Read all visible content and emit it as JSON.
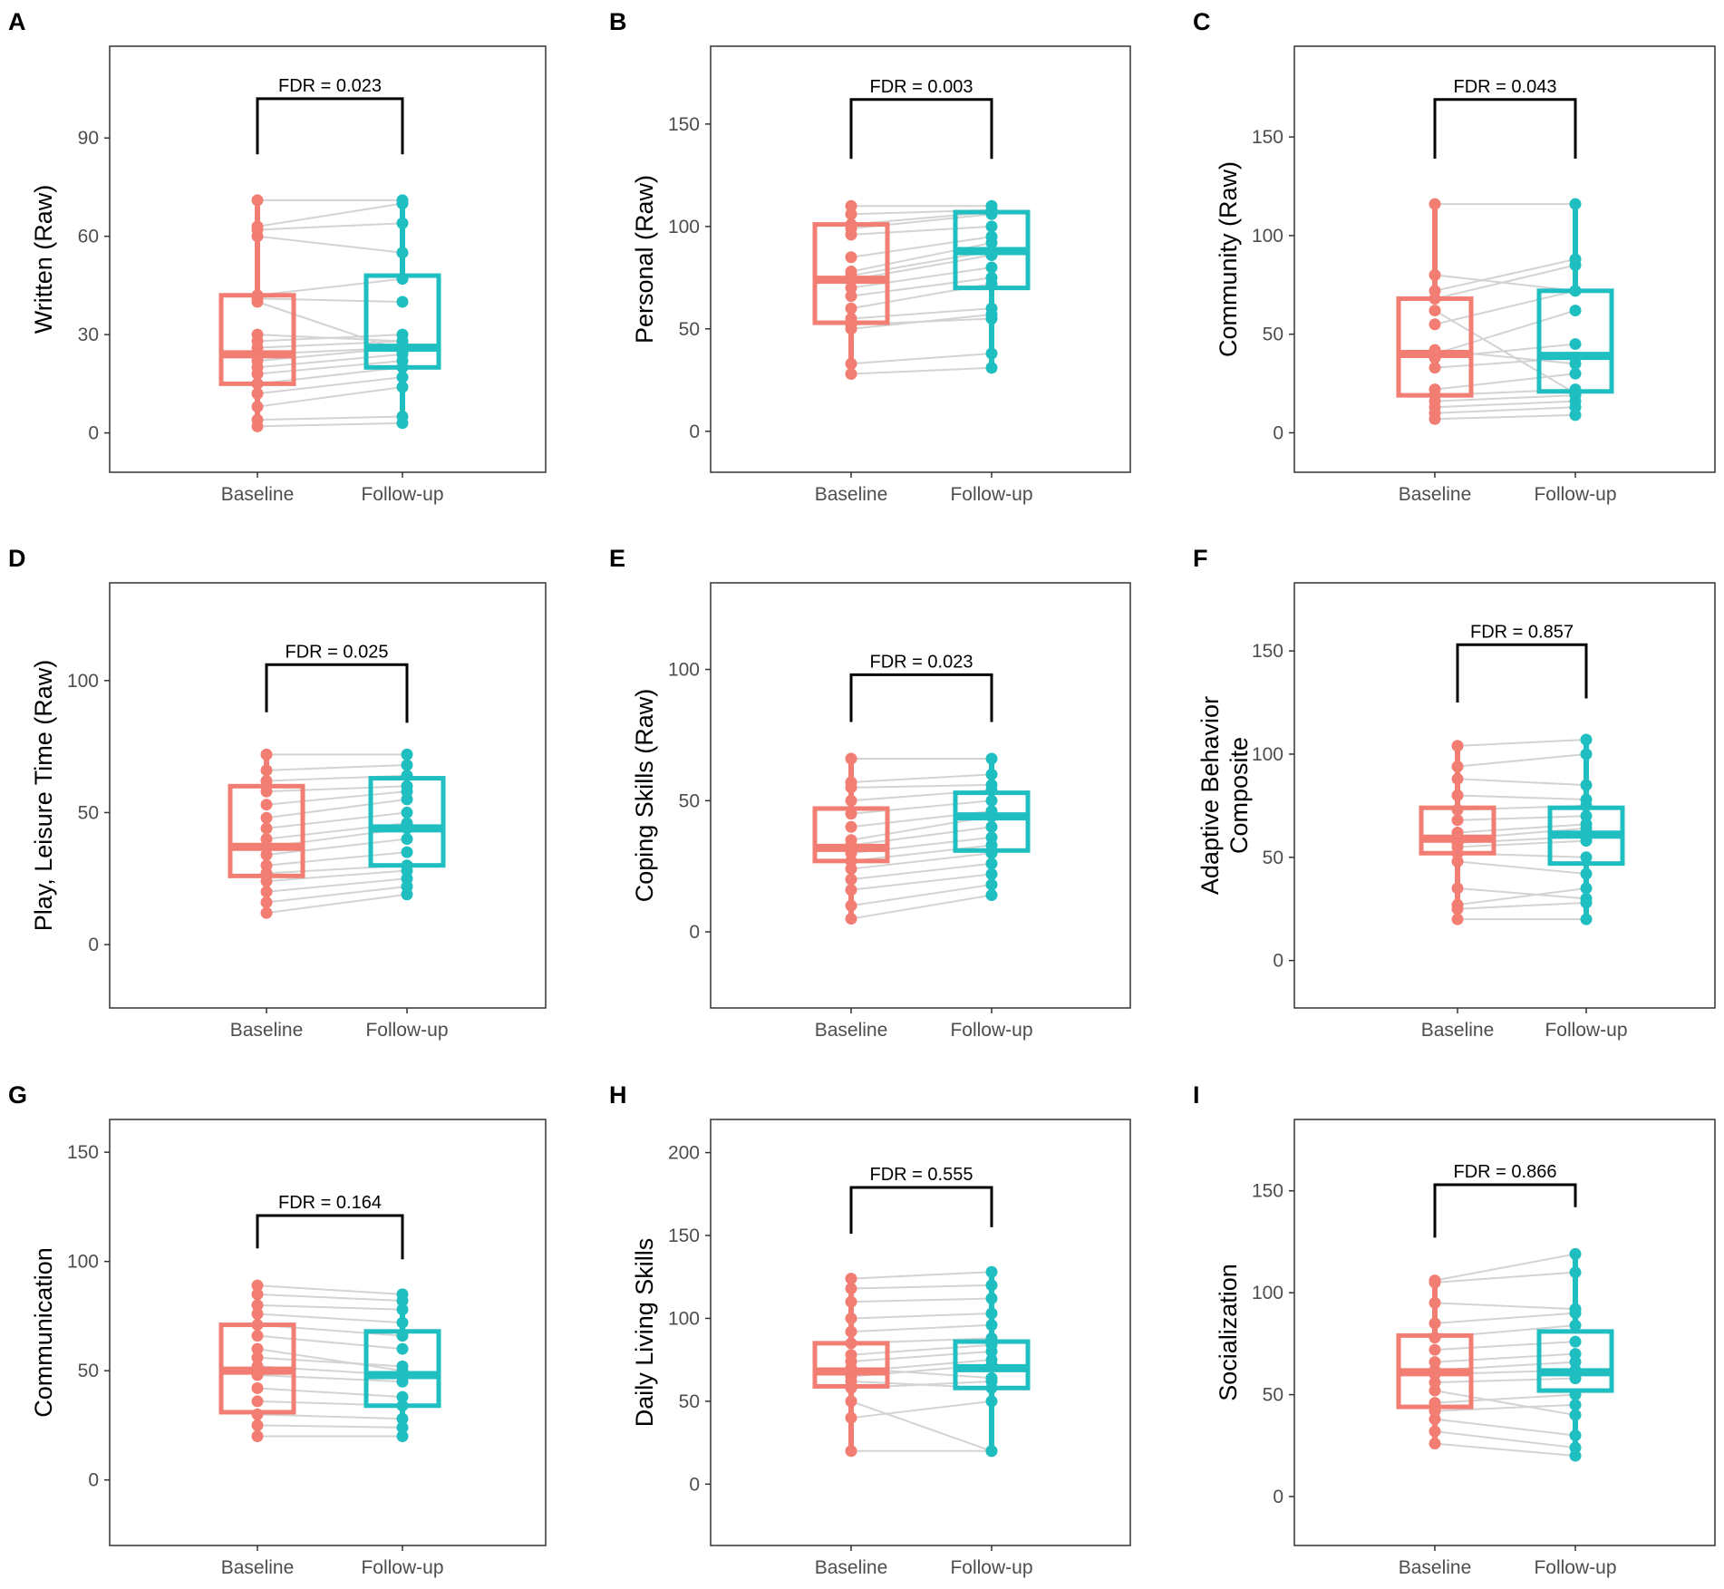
{
  "colors": {
    "baseline": "#F27D72",
    "followup": "#1FBEC1",
    "pair_line": "#d3d3d3",
    "bracket": "#000000",
    "frame": "#333333",
    "tick_text": "#4d4d4d"
  },
  "chart_data": [
    {
      "type": "box",
      "panel": "A",
      "title": "",
      "xlabel": "",
      "ylabel": [
        "Written (Raw)"
      ],
      "categories": [
        "Baseline",
        "Follow-up"
      ],
      "ylim": [
        -12,
        118
      ],
      "yticks": [
        0,
        30,
        60,
        90
      ],
      "annotation": "FDR = 0.023",
      "bracket": {
        "y_top": 102,
        "y_left_end": 85,
        "y_right_end": 85
      },
      "boxes": [
        {
          "name": "Baseline",
          "q1": 15,
          "median": 24,
          "q3": 42,
          "min": 2,
          "max": 71
        },
        {
          "name": "Follow-up",
          "q1": 20,
          "median": 26,
          "q3": 48,
          "min": 3,
          "max": 71
        }
      ],
      "pairs": [
        [
          2,
          3
        ],
        [
          4,
          5
        ],
        [
          8,
          14
        ],
        [
          12,
          17
        ],
        [
          15,
          20
        ],
        [
          18,
          22
        ],
        [
          20,
          24
        ],
        [
          22,
          26
        ],
        [
          24,
          26
        ],
        [
          26,
          28
        ],
        [
          28,
          30
        ],
        [
          30,
          28
        ],
        [
          40,
          25
        ],
        [
          41,
          40
        ],
        [
          42,
          47
        ],
        [
          60,
          55
        ],
        [
          62,
          64
        ],
        [
          63,
          70
        ],
        [
          71,
          71
        ]
      ]
    },
    {
      "type": "box",
      "panel": "B",
      "title": "",
      "xlabel": "",
      "ylabel": [
        "Personal (Raw)"
      ],
      "categories": [
        "Baseline",
        "Follow-up"
      ],
      "ylim": [
        -20,
        188
      ],
      "yticks": [
        0,
        50,
        100,
        150
      ],
      "annotation": "FDR = 0.003",
      "bracket": {
        "y_top": 162,
        "y_left_end": 133,
        "y_right_end": 133
      },
      "boxes": [
        {
          "name": "Baseline",
          "q1": 53,
          "median": 74,
          "q3": 101,
          "min": 28,
          "max": 110
        },
        {
          "name": "Follow-up",
          "q1": 70,
          "median": 88,
          "q3": 107,
          "min": 31,
          "max": 110
        }
      ],
      "pairs": [
        [
          28,
          31
        ],
        [
          33,
          38
        ],
        [
          50,
          57
        ],
        [
          52,
          55
        ],
        [
          55,
          60
        ],
        [
          60,
          72
        ],
        [
          66,
          75
        ],
        [
          70,
          80
        ],
        [
          74,
          86
        ],
        [
          76,
          88
        ],
        [
          78,
          92
        ],
        [
          85,
          95
        ],
        [
          96,
          100
        ],
        [
          99,
          106
        ],
        [
          101,
          107
        ],
        [
          106,
          108
        ],
        [
          110,
          110
        ]
      ]
    },
    {
      "type": "box",
      "panel": "C",
      "title": "",
      "xlabel": "",
      "ylabel": [
        "Community (Raw)"
      ],
      "categories": [
        "Baseline",
        "Follow-up"
      ],
      "ylim": [
        -20,
        196
      ],
      "yticks": [
        0,
        50,
        100,
        150
      ],
      "annotation": "FDR = 0.043",
      "bracket": {
        "y_top": 169,
        "y_left_end": 139,
        "y_right_end": 139
      },
      "boxes": [
        {
          "name": "Baseline",
          "q1": 19,
          "median": 40,
          "q3": 68,
          "min": 7,
          "max": 116
        },
        {
          "name": "Follow-up",
          "q1": 21,
          "median": 39,
          "q3": 72,
          "min": 9,
          "max": 116
        }
      ],
      "pairs": [
        [
          7,
          9
        ],
        [
          10,
          13
        ],
        [
          13,
          16
        ],
        [
          16,
          19
        ],
        [
          19,
          22
        ],
        [
          22,
          30
        ],
        [
          33,
          38
        ],
        [
          38,
          45
        ],
        [
          40,
          62
        ],
        [
          42,
          35
        ],
        [
          55,
          72
        ],
        [
          62,
          20
        ],
        [
          68,
          85
        ],
        [
          72,
          88
        ],
        [
          80,
          72
        ],
        [
          116,
          116
        ]
      ]
    },
    {
      "type": "box",
      "panel": "D",
      "title": "",
      "xlabel": "",
      "ylabel": [
        "Play, Leisure Time (Raw)"
      ],
      "categories": [
        "Baseline",
        "Follow-up"
      ],
      "ylim": [
        -24,
        137
      ],
      "yticks": [
        0,
        50,
        100
      ],
      "annotation": "FDR = 0.025",
      "bracket": {
        "y_top": 106,
        "y_left_end": 88,
        "y_right_end": 84
      },
      "boxes": [
        {
          "name": "Baseline",
          "q1": 26,
          "median": 37,
          "q3": 60,
          "min": 12,
          "max": 72
        },
        {
          "name": "Follow-up",
          "q1": 30,
          "median": 44,
          "q3": 63,
          "min": 19,
          "max": 72
        }
      ],
      "pairs": [
        [
          12,
          19
        ],
        [
          16,
          22
        ],
        [
          20,
          25
        ],
        [
          24,
          28
        ],
        [
          27,
          30
        ],
        [
          30,
          35
        ],
        [
          34,
          40
        ],
        [
          37,
          44
        ],
        [
          40,
          46
        ],
        [
          44,
          50
        ],
        [
          48,
          55
        ],
        [
          53,
          58
        ],
        [
          58,
          60
        ],
        [
          62,
          64
        ],
        [
          66,
          68
        ],
        [
          72,
          72
        ]
      ]
    },
    {
      "type": "box",
      "panel": "E",
      "title": "",
      "xlabel": "",
      "ylabel": [
        "Coping Skills (Raw)"
      ],
      "categories": [
        "Baseline",
        "Follow-up"
      ],
      "ylim": [
        -29,
        133
      ],
      "yticks": [
        0,
        50,
        100
      ],
      "annotation": "FDR = 0.023",
      "bracket": {
        "y_top": 98,
        "y_left_end": 80,
        "y_right_end": 80
      },
      "boxes": [
        {
          "name": "Baseline",
          "q1": 27,
          "median": 32,
          "q3": 47,
          "min": 5,
          "max": 66
        },
        {
          "name": "Follow-up",
          "q1": 31,
          "median": 44,
          "q3": 53,
          "min": 14,
          "max": 66
        }
      ],
      "pairs": [
        [
          5,
          14
        ],
        [
          10,
          18
        ],
        [
          16,
          22
        ],
        [
          20,
          26
        ],
        [
          24,
          30
        ],
        [
          27,
          33
        ],
        [
          30,
          36
        ],
        [
          33,
          40
        ],
        [
          35,
          44
        ],
        [
          40,
          46
        ],
        [
          45,
          50
        ],
        [
          50,
          54
        ],
        [
          55,
          56
        ],
        [
          57,
          60
        ],
        [
          66,
          66
        ]
      ]
    },
    {
      "type": "box",
      "panel": "F",
      "title": "",
      "xlabel": "",
      "ylabel": [
        "Adaptive Behavior",
        "Composite"
      ],
      "categories": [
        "Baseline",
        "Follow-up"
      ],
      "ylim": [
        -23,
        183
      ],
      "yticks": [
        0,
        50,
        100,
        150
      ],
      "annotation": "FDR = 0.857",
      "bracket": {
        "y_top": 153,
        "y_left_end": 125,
        "y_right_end": 127
      },
      "boxes": [
        {
          "name": "Baseline",
          "q1": 52,
          "median": 59,
          "q3": 74,
          "min": 20,
          "max": 104
        },
        {
          "name": "Follow-up",
          "q1": 47,
          "median": 61,
          "q3": 74,
          "min": 20,
          "max": 107
        }
      ],
      "pairs": [
        [
          20,
          20
        ],
        [
          25,
          28
        ],
        [
          27,
          35
        ],
        [
          35,
          30
        ],
        [
          48,
          42
        ],
        [
          52,
          50
        ],
        [
          55,
          58
        ],
        [
          57,
          60
        ],
        [
          59,
          64
        ],
        [
          62,
          66
        ],
        [
          68,
          70
        ],
        [
          73,
          75
        ],
        [
          80,
          78
        ],
        [
          88,
          85
        ],
        [
          94,
          100
        ],
        [
          104,
          107
        ]
      ]
    },
    {
      "type": "box",
      "panel": "G",
      "title": "",
      "xlabel": "",
      "ylabel": [
        "Communication"
      ],
      "categories": [
        "Baseline",
        "Follow-up"
      ],
      "ylim": [
        -30,
        165
      ],
      "yticks": [
        0,
        50,
        100,
        150
      ],
      "annotation": "FDR = 0.164",
      "bracket": {
        "y_top": 121,
        "y_left_end": 106,
        "y_right_end": 101
      },
      "boxes": [
        {
          "name": "Baseline",
          "q1": 31,
          "median": 50,
          "q3": 71,
          "min": 20,
          "max": 89
        },
        {
          "name": "Follow-up",
          "q1": 34,
          "median": 48,
          "q3": 68,
          "min": 20,
          "max": 85
        }
      ],
      "pairs": [
        [
          20,
          20
        ],
        [
          25,
          24
        ],
        [
          30,
          28
        ],
        [
          36,
          34
        ],
        [
          42,
          38
        ],
        [
          48,
          45
        ],
        [
          52,
          48
        ],
        [
          56,
          52
        ],
        [
          60,
          50
        ],
        [
          66,
          60
        ],
        [
          71,
          66
        ],
        [
          76,
          72
        ],
        [
          80,
          78
        ],
        [
          85,
          82
        ],
        [
          89,
          85
        ]
      ]
    },
    {
      "type": "box",
      "panel": "H",
      "title": "",
      "xlabel": "",
      "ylabel": [
        "Daily Living Skills"
      ],
      "categories": [
        "Baseline",
        "Follow-up"
      ],
      "ylim": [
        -37,
        220
      ],
      "yticks": [
        0,
        50,
        100,
        150,
        200
      ],
      "annotation": "FDR = 0.555",
      "bracket": {
        "y_top": 179,
        "y_left_end": 151,
        "y_right_end": 155
      },
      "boxes": [
        {
          "name": "Baseline",
          "q1": 59,
          "median": 68,
          "q3": 85,
          "min": 20,
          "max": 124
        },
        {
          "name": "Follow-up",
          "q1": 58,
          "median": 70,
          "q3": 86,
          "min": 20,
          "max": 128
        }
      ],
      "pairs": [
        [
          20,
          20
        ],
        [
          40,
          50
        ],
        [
          50,
          20
        ],
        [
          58,
          62
        ],
        [
          62,
          58
        ],
        [
          65,
          72
        ],
        [
          68,
          75
        ],
        [
          70,
          64
        ],
        [
          74,
          80
        ],
        [
          78,
          84
        ],
        [
          85,
          88
        ],
        [
          92,
          96
        ],
        [
          100,
          103
        ],
        [
          110,
          112
        ],
        [
          118,
          120
        ],
        [
          124,
          128
        ]
      ]
    },
    {
      "type": "box",
      "panel": "I",
      "title": "",
      "xlabel": "",
      "ylabel": [
        "Socialization"
      ],
      "categories": [
        "Baseline",
        "Follow-up"
      ],
      "ylim": [
        -24,
        185
      ],
      "yticks": [
        0,
        50,
        100,
        150
      ],
      "annotation": "FDR = 0.866",
      "bracket": {
        "y_top": 153,
        "y_left_end": 127,
        "y_right_end": 142
      },
      "boxes": [
        {
          "name": "Baseline",
          "q1": 44,
          "median": 61,
          "q3": 79,
          "min": 26,
          "max": 106
        },
        {
          "name": "Follow-up",
          "q1": 52,
          "median": 61,
          "q3": 81,
          "min": 20,
          "max": 119
        }
      ],
      "pairs": [
        [
          26,
          20
        ],
        [
          32,
          24
        ],
        [
          38,
          30
        ],
        [
          42,
          45
        ],
        [
          46,
          50
        ],
        [
          52,
          40
        ],
        [
          56,
          58
        ],
        [
          60,
          62
        ],
        [
          62,
          66
        ],
        [
          66,
          70
        ],
        [
          72,
          76
        ],
        [
          78,
          84
        ],
        [
          85,
          90
        ],
        [
          95,
          92
        ],
        [
          105,
          110
        ],
        [
          106,
          119
        ]
      ]
    }
  ]
}
